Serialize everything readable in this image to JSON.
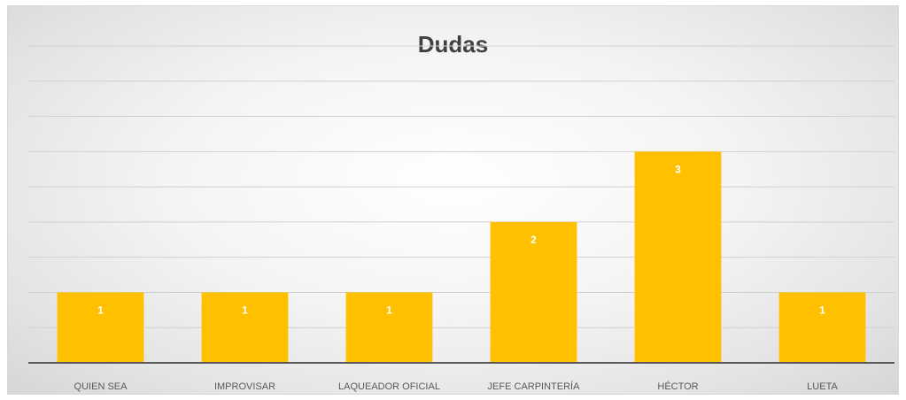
{
  "chart_data": {
    "type": "bar",
    "title": "Dudas",
    "categories": [
      "QUIEN SEA",
      "IMPROVISAR",
      "LAQUEADOR OFICIAL",
      "JEFE CARPINTERÍA",
      "HÉCTOR",
      "LUETA"
    ],
    "series": [
      {
        "values": [
          1,
          1,
          1,
          2,
          3,
          1
        ]
      }
    ],
    "ylim": [
      0,
      4.5
    ],
    "grid": true,
    "data_labels": true,
    "legend": "none",
    "bar_color": "#FFC000"
  },
  "colors": {
    "gridline": "#d0d0d0",
    "axis": "#595959"
  }
}
